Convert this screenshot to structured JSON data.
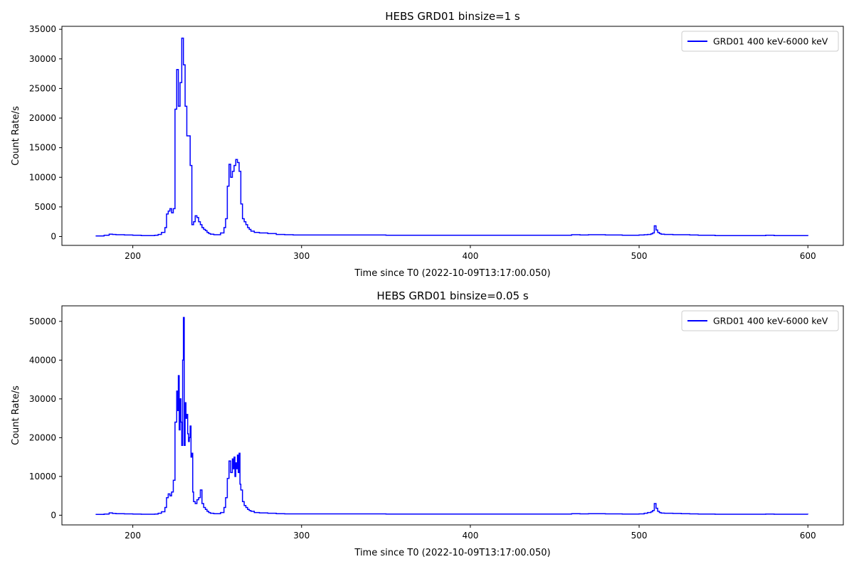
{
  "figure": {
    "background": "#ffffff",
    "line_color": "#0000ff"
  },
  "chart_data": [
    {
      "type": "line",
      "drawstyle": "steps",
      "title": "HEBS GRD01 binsize=1 s",
      "xlabel": "Time since T0 (2022-10-09T13:17:00.050)",
      "ylabel": "Count Rate/s",
      "xlim": [
        158,
        621
      ],
      "ylim": [
        -1500,
        35500
      ],
      "xticks": [
        200,
        300,
        400,
        500,
        600
      ],
      "yticks": [
        0,
        5000,
        10000,
        15000,
        20000,
        25000,
        30000,
        35000
      ],
      "grid": false,
      "legend": {
        "location": "upper right",
        "entries": [
          "GRD01 400 keV-6000 keV"
        ]
      },
      "series": [
        {
          "name": "GRD01 400 keV-6000 keV",
          "color": "#0000ff",
          "x": [
            178,
            183,
            186,
            188,
            190,
            195,
            200,
            205,
            210,
            213,
            215,
            217,
            219,
            220,
            221,
            222,
            223,
            224,
            225,
            226,
            227,
            228,
            229,
            230,
            231,
            232,
            233,
            234,
            235,
            236,
            237,
            238,
            239,
            240,
            241,
            242,
            243,
            244,
            245,
            246,
            248,
            250,
            252,
            254,
            255,
            256,
            257,
            258,
            259,
            260,
            261,
            262,
            263,
            264,
            265,
            266,
            267,
            268,
            269,
            270,
            272,
            275,
            280,
            285,
            290,
            295,
            300,
            350,
            400,
            450,
            460,
            465,
            470,
            480,
            490,
            500,
            503,
            505,
            507,
            508,
            509,
            510,
            511,
            512,
            513,
            515,
            520,
            525,
            530,
            535,
            540,
            545,
            550,
            560,
            570,
            575,
            580,
            590,
            595,
            600
          ],
          "y": [
            100,
            200,
            400,
            350,
            300,
            250,
            200,
            150,
            150,
            200,
            350,
            700,
            1500,
            3800,
            4300,
            4700,
            4000,
            4700,
            21500,
            28200,
            22000,
            26000,
            33500,
            29000,
            22000,
            17000,
            17000,
            12000,
            2000,
            2500,
            3500,
            3200,
            2500,
            2000,
            1500,
            1200,
            1000,
            700,
            500,
            400,
            300,
            300,
            600,
            1500,
            3000,
            8500,
            12200,
            10000,
            11000,
            12000,
            13000,
            12500,
            11000,
            5500,
            3000,
            2500,
            2000,
            1500,
            1200,
            900,
            700,
            600,
            500,
            350,
            300,
            250,
            250,
            200,
            200,
            200,
            300,
            250,
            300,
            250,
            200,
            250,
            300,
            350,
            450,
            600,
            1800,
            1100,
            700,
            500,
            400,
            350,
            300,
            300,
            250,
            200,
            200,
            150,
            150,
            150,
            150,
            200,
            150,
            150,
            150,
            100
          ]
        }
      ]
    },
    {
      "type": "line",
      "drawstyle": "steps",
      "title": "HEBS GRD01 binsize=0.05 s",
      "xlabel": "Time since T0 (2022-10-09T13:17:00.050)",
      "ylabel": "Count Rate/s",
      "xlim": [
        158,
        621
      ],
      "ylim": [
        -2500,
        54000
      ],
      "xticks": [
        200,
        300,
        400,
        500,
        600
      ],
      "yticks": [
        0,
        10000,
        20000,
        30000,
        40000,
        50000
      ],
      "grid": false,
      "legend": {
        "location": "upper right",
        "entries": [
          "GRD01 400 keV-6000 keV"
        ]
      },
      "series": [
        {
          "name": "GRD01 400 keV-6000 keV",
          "color": "#0000ff",
          "x": [
            178,
            183,
            186,
            188,
            190,
            195,
            200,
            205,
            210,
            213,
            215,
            217,
            219,
            220,
            221,
            222,
            223,
            224,
            225,
            226,
            226.5,
            227,
            227.5,
            228,
            228.5,
            229,
            229.5,
            230,
            230.5,
            231,
            231.5,
            232,
            232.5,
            233,
            233.5,
            234,
            234.5,
            235,
            235.5,
            236,
            237,
            238,
            239,
            240,
            241,
            242,
            243,
            244,
            245,
            246,
            248,
            250,
            252,
            254,
            255,
            256,
            257,
            258,
            259,
            259.5,
            260,
            260.5,
            261,
            261.5,
            262,
            262.5,
            263,
            263.5,
            264,
            265,
            266,
            267,
            268,
            269,
            270,
            272,
            275,
            280,
            285,
            290,
            295,
            300,
            350,
            400,
            450,
            460,
            465,
            470,
            480,
            490,
            500,
            503,
            505,
            507,
            508,
            509,
            510,
            511,
            512,
            513,
            515,
            520,
            525,
            530,
            535,
            540,
            545,
            550,
            560,
            570,
            575,
            580,
            590,
            595,
            600
          ],
          "y": [
            200,
            300,
            600,
            450,
            400,
            350,
            300,
            250,
            250,
            300,
            500,
            900,
            2000,
            4500,
            5500,
            5000,
            6000,
            9000,
            24000,
            32000,
            27000,
            36000,
            22000,
            30000,
            24000,
            18000,
            40000,
            51000,
            18000,
            29000,
            25000,
            26000,
            21000,
            19000,
            20000,
            23000,
            15000,
            16000,
            6000,
            3500,
            3000,
            4000,
            4500,
            6500,
            3000,
            2000,
            1500,
            1000,
            700,
            500,
            400,
            400,
            700,
            2000,
            4500,
            9500,
            14000,
            11000,
            14500,
            12000,
            15000,
            10000,
            13500,
            12000,
            15500,
            11000,
            16000,
            8000,
            6500,
            3500,
            2500,
            2000,
            1500,
            1200,
            1000,
            700,
            600,
            500,
            400,
            350,
            350,
            350,
            300,
            300,
            300,
            400,
            350,
            400,
            350,
            300,
            350,
            500,
            700,
            900,
            1200,
            3000,
            1800,
            1000,
            700,
            550,
            500,
            450,
            400,
            350,
            300,
            300,
            250,
            250,
            250,
            250,
            300,
            250,
            250,
            250,
            200
          ]
        }
      ]
    }
  ]
}
